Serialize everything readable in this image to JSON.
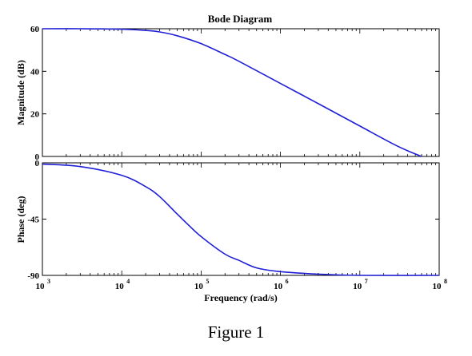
{
  "caption": "Figure 1",
  "chart_data": {
    "type": "line",
    "title": "Bode Diagram",
    "xlabel": "Frequency  (rad/s)",
    "xscale": "log",
    "xlim": [
      1000,
      100000000
    ],
    "x_ticks": [
      {
        "base": "10",
        "exp": "3"
      },
      {
        "base": "10",
        "exp": "4"
      },
      {
        "base": "10",
        "exp": "5"
      },
      {
        "base": "10",
        "exp": "6"
      },
      {
        "base": "10",
        "exp": "7"
      },
      {
        "base": "10",
        "exp": "8"
      }
    ],
    "line_color": "#1f1fd6",
    "grid": false,
    "panels": [
      {
        "id": "magnitude",
        "ylabel": "Magnitude (dB)",
        "ylim": [
          0,
          60
        ],
        "y_ticks": [
          "0",
          "20",
          "40",
          "60"
        ],
        "y_tick_values": [
          0,
          20,
          40,
          60
        ],
        "series": {
          "x": [
            1000,
            3000,
            10000,
            20000,
            30000,
            50000,
            100000,
            200000,
            300000,
            1000000,
            3000000,
            10000000,
            30000000,
            60000000
          ],
          "y": [
            60,
            60,
            59.8,
            59.2,
            58.5,
            56.7,
            53,
            47.9,
            44.7,
            34.3,
            24.8,
            14.3,
            4.8,
            0
          ]
        }
      },
      {
        "id": "phase",
        "ylabel": "Phase (deg)",
        "ylim": [
          -90,
          0
        ],
        "y_ticks": [
          "0",
          "-45",
          "-90"
        ],
        "y_tick_values": [
          0,
          -45,
          -90
        ],
        "series": {
          "x": [
            1000,
            3000,
            10000,
            20000,
            30000,
            50000,
            70000,
            100000,
            200000,
            300000,
            500000,
            1000000,
            3000000,
            10000000,
            100000000
          ],
          "y": [
            -1,
            -3,
            -10,
            -19,
            -27,
            -41,
            -50,
            -59,
            -73,
            -78,
            -84,
            -87,
            -89,
            -90,
            -90
          ]
        }
      }
    ]
  }
}
